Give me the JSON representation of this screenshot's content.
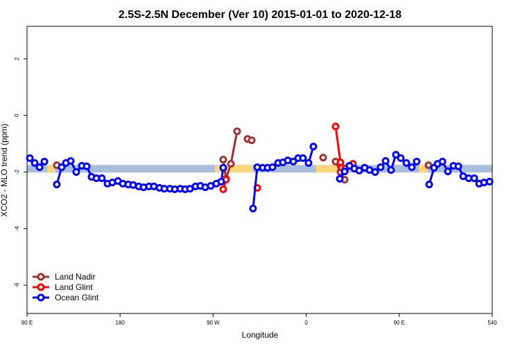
{
  "chart_data": {
    "type": "line",
    "title": "2.5S-2.5N December (Ver 10)   2015-01-01 to 2020-12-18",
    "xlabel": "Longitude",
    "ylabel": "XCO2 - MLO trend (ppm)",
    "xlim": [
      90,
      540
    ],
    "ylim": [
      -7,
      3.15
    ],
    "xticks": [
      {
        "value": 90,
        "label": "90 E"
      },
      180,
      {
        "value": 270,
        "label": "90 W"
      },
      {
        "value": 360,
        "label": "0"
      },
      {
        "value": 450,
        "label": "90 E"
      },
      540
    ],
    "yticks": [
      -6,
      -4,
      -2,
      0,
      2
    ],
    "legend": "bottom-left",
    "background_band": {
      "ylim": [
        -2.02,
        -1.75
      ],
      "color": "#a8bedc",
      "land_color": "#fcd67a",
      "land_x": [
        [
          109.4,
          117.5
        ],
        [
          271.8,
          308.6
        ],
        [
          369.7,
          390.5
        ],
        [
          468.9,
          477.7
        ]
      ]
    },
    "series": [
      {
        "name": "Land Nadir",
        "color": "#a03030",
        "x": [
          118.8,
          null,
          279.8,
          282.5,
          287.2,
          293.2,
          null,
          303.3,
          307.3,
          null,
          376.4,
          null,
          388.5,
          393.2,
          397.2,
          null,
          478.3
        ],
        "values": [
          -1.76,
          null,
          -1.56,
          -2.24,
          -1.71,
          -0.56,
          null,
          -0.83,
          -0.88,
          null,
          -1.49,
          null,
          -1.63,
          -2.0,
          -2.27,
          null,
          -1.76
        ]
      },
      {
        "name": "Land Glint",
        "color": "#ff0000",
        "x": [
          279.8,
          282.5,
          null,
          312.7,
          null,
          388.5,
          393.2,
          394.5,
          397.8,
          405.2
        ],
        "values": [
          -2.61,
          -2.27,
          null,
          -2.56,
          null,
          -0.39,
          -1.66,
          -1.85,
          -1.88,
          -1.71
        ]
      },
      {
        "name": "Ocean Glint",
        "color": "#0000ff",
        "x": [
          92.7,
          97.4,
          102.1,
          106.8,
          null,
          118.8,
          123.5,
          127.6,
          132.3,
          137.6,
          143,
          147.7,
          152.4,
          157.1,
          162.4,
          167.8,
          172.5,
          177.9,
          182.6,
          187.9,
          192.6,
          198,
          202.7,
          208,
          212.7,
          218.1,
          222.8,
          228.2,
          232.9,
          238.2,
          242.9,
          247.6,
          253,
          257.7,
          262.4,
          267.7,
          273.1,
          277.8,
          279.8,
          null,
          308.6,
          312.7,
          318,
          322.7,
          327.4,
          332.8,
          337.5,
          342.2,
          347.6,
          352.2,
          356.9,
          362.3,
          367,
          null,
          392.5,
          397.2,
          401.9,
          406.6,
          411.3,
          416.6,
          421.3,
          426.7,
          432,
          436.8,
          442.1,
          446.8,
          451.5,
          456.9,
          462.2,
          466.9,
          null,
          479,
          483.7,
          487.1,
          491.8,
          497.1,
          502.5,
          507.2,
          511.9,
          517.2,
          522.6,
          527.3,
          532,
          537.4
        ],
        "values": [
          -1.51,
          -1.68,
          -1.83,
          -1.63,
          null,
          -2.44,
          -1.83,
          -1.68,
          -1.61,
          -2.0,
          -1.78,
          -1.8,
          -2.17,
          -2.22,
          -2.22,
          -2.41,
          -2.37,
          -2.32,
          -2.41,
          -2.44,
          -2.46,
          -2.51,
          -2.54,
          -2.51,
          -2.51,
          -2.56,
          -2.59,
          -2.59,
          -2.61,
          -2.59,
          -2.61,
          -2.59,
          -2.51,
          -2.49,
          -2.54,
          -2.49,
          -2.41,
          -2.34,
          -1.85,
          null,
          -3.29,
          -1.83,
          -1.85,
          -1.85,
          -1.83,
          -1.68,
          -1.66,
          -1.59,
          -1.63,
          -1.51,
          -1.51,
          -1.68,
          -1.1,
          null,
          -2.24,
          -1.98,
          -1.78,
          -1.88,
          -1.95,
          -1.85,
          -1.93,
          -2.0,
          -1.83,
          -1.61,
          -1.93,
          -1.39,
          -1.51,
          -1.68,
          -1.83,
          -1.63,
          null,
          -2.44,
          -1.85,
          -1.71,
          -1.63,
          -1.98,
          -1.78,
          -1.8,
          -2.15,
          -2.22,
          -2.22,
          -2.41,
          -2.37,
          -2.34
        ]
      }
    ]
  }
}
